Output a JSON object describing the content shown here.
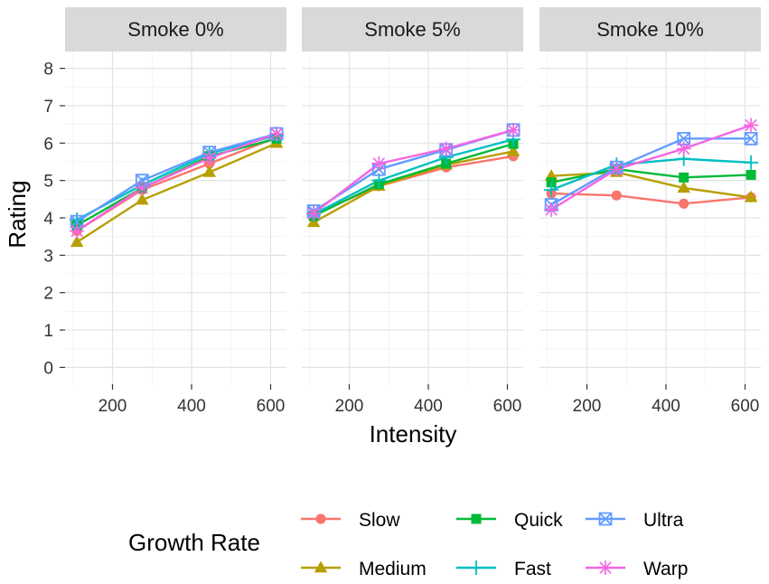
{
  "chart_data": {
    "type": "line",
    "x_label": "Intensity",
    "y_label": "Rating",
    "y_range": [
      -0.45,
      8.45
    ],
    "y_ticks": [
      "0",
      "1",
      "2",
      "3",
      "4",
      "5",
      "6",
      "7",
      "8"
    ],
    "x_range": [
      80,
      640
    ],
    "x_ticks": [
      "200",
      "400",
      "600"
    ],
    "legend": {
      "title": "Growth Rate",
      "position": "bottom"
    },
    "panels": [
      {
        "title": "Smoke 0%",
        "series": [
          {
            "name": "Slow",
            "color": "#F8766D",
            "marker": "circle",
            "x": [
              110,
              275,
              445,
              615
            ],
            "y": [
              3.65,
              4.75,
              5.45,
              6.15
            ]
          },
          {
            "name": "Medium",
            "color": "#B79F00",
            "marker": "triangle",
            "x": [
              110,
              275,
              445,
              615
            ],
            "y": [
              3.35,
              4.48,
              5.22,
              6.0
            ]
          },
          {
            "name": "Quick",
            "color": "#00BA38",
            "marker": "square",
            "x": [
              110,
              275,
              445,
              615
            ],
            "y": [
              3.8,
              4.8,
              5.65,
              6.12
            ]
          },
          {
            "name": "Fast",
            "color": "#00BFC4",
            "marker": "plus",
            "x": [
              110,
              275,
              445,
              615
            ],
            "y": [
              3.95,
              4.88,
              5.72,
              6.2
            ]
          },
          {
            "name": "Ultra",
            "color": "#619CFF",
            "marker": "square-x",
            "x": [
              110,
              275,
              445,
              615
            ],
            "y": [
              3.9,
              5.0,
              5.75,
              6.25
            ]
          },
          {
            "name": "Warp",
            "color": "#F564E3",
            "marker": "asterisk",
            "x": [
              110,
              275,
              445,
              615
            ],
            "y": [
              3.65,
              4.8,
              5.6,
              6.25
            ]
          }
        ]
      },
      {
        "title": "Smoke 5%",
        "series": [
          {
            "name": "Slow",
            "color": "#F8766D",
            "marker": "circle",
            "x": [
              110,
              275,
              445,
              615
            ],
            "y": [
              4.1,
              4.85,
              5.35,
              5.65
            ]
          },
          {
            "name": "Medium",
            "color": "#B79F00",
            "marker": "triangle",
            "x": [
              110,
              275,
              445,
              615
            ],
            "y": [
              3.88,
              4.85,
              5.42,
              5.78
            ]
          },
          {
            "name": "Quick",
            "color": "#00BA38",
            "marker": "square",
            "x": [
              110,
              275,
              445,
              615
            ],
            "y": [
              4.05,
              4.9,
              5.45,
              5.98
            ]
          },
          {
            "name": "Fast",
            "color": "#00BFC4",
            "marker": "plus",
            "x": [
              110,
              275,
              445,
              615
            ],
            "y": [
              4.1,
              5.0,
              5.62,
              6.1
            ]
          },
          {
            "name": "Ultra",
            "color": "#619CFF",
            "marker": "square-x",
            "x": [
              110,
              275,
              445,
              615
            ],
            "y": [
              4.18,
              5.3,
              5.82,
              6.35
            ]
          },
          {
            "name": "Warp",
            "color": "#F564E3",
            "marker": "asterisk",
            "x": [
              110,
              275,
              445,
              615
            ],
            "y": [
              4.12,
              5.45,
              5.85,
              6.35
            ]
          }
        ]
      },
      {
        "title": "Smoke 10%",
        "series": [
          {
            "name": "Slow",
            "color": "#F8766D",
            "marker": "circle",
            "x": [
              110,
              275,
              445,
              615
            ],
            "y": [
              4.65,
              4.6,
              4.38,
              4.55
            ]
          },
          {
            "name": "Medium",
            "color": "#B79F00",
            "marker": "triangle",
            "x": [
              110,
              275,
              445,
              615
            ],
            "y": [
              5.12,
              5.22,
              4.8,
              4.55
            ]
          },
          {
            "name": "Quick",
            "color": "#00BA38",
            "marker": "square",
            "x": [
              110,
              275,
              445,
              615
            ],
            "y": [
              4.95,
              5.3,
              5.08,
              5.15
            ]
          },
          {
            "name": "Fast",
            "color": "#00BFC4",
            "marker": "plus",
            "x": [
              110,
              275,
              445,
              615
            ],
            "y": [
              4.75,
              5.42,
              5.58,
              5.48
            ]
          },
          {
            "name": "Ultra",
            "color": "#619CFF",
            "marker": "square-x",
            "x": [
              110,
              275,
              445,
              615
            ],
            "y": [
              4.35,
              5.35,
              6.12,
              6.12
            ]
          },
          {
            "name": "Warp",
            "color": "#F564E3",
            "marker": "asterisk",
            "x": [
              110,
              275,
              445,
              615
            ],
            "y": [
              4.22,
              5.3,
              5.85,
              6.48
            ]
          }
        ]
      }
    ]
  }
}
